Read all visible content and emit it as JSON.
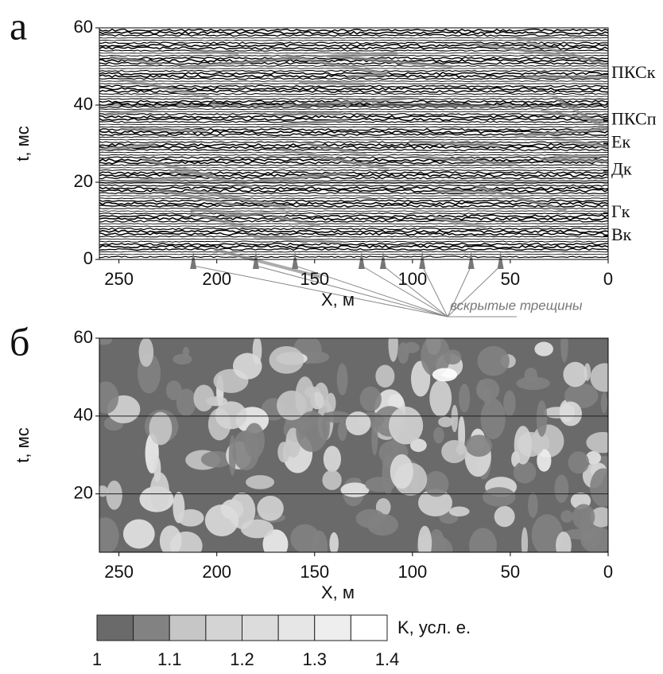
{
  "chart_data": [
    {
      "type": "seismic",
      "panel_label": "а",
      "xlabel": "X, м",
      "ylabel": "t, мс",
      "xlim": [
        260,
        0
      ],
      "ylim": [
        0,
        60
      ],
      "xticks": [
        250,
        200,
        150,
        100,
        50,
        0
      ],
      "yticks": [
        0,
        20,
        40,
        60
      ],
      "grid": true,
      "horizons": [
        {
          "label": "ПКСк",
          "t": 48
        },
        {
          "label": "ПКСп",
          "t": 36
        },
        {
          "label": "Ек",
          "t": 30
        },
        {
          "label": "Дк",
          "t": 23
        },
        {
          "label": "Гк",
          "t": 12
        },
        {
          "label": "Вк",
          "t": 6
        }
      ],
      "fractures": {
        "label": "вскрытые трещины",
        "x": [
          212,
          180,
          160,
          126,
          115,
          95,
          70,
          55
        ]
      }
    },
    {
      "type": "contour",
      "panel_label": "б",
      "xlabel": "X, м",
      "ylabel": "t, мс",
      "xlim": [
        260,
        0
      ],
      "ylim": [
        5,
        60
      ],
      "xticks": [
        250,
        200,
        150,
        100,
        50,
        0
      ],
      "yticks": [
        20,
        40,
        60
      ],
      "grid": true,
      "colorbar": {
        "label": "K, усл. е.",
        "bins": [
          1,
          1.05,
          1.1,
          1.15,
          1.2,
          1.25,
          1.3,
          1.35,
          1.4
        ],
        "colors": [
          "#6a6a6a",
          "#828282",
          "#c6c6c6",
          "#d4d4d4",
          "#dcdcdc",
          "#e6e6e6",
          "#eeeeee",
          "#ffffff"
        ],
        "ticks": [
          1,
          1.1,
          1.2,
          1.3,
          1.4
        ]
      }
    }
  ]
}
